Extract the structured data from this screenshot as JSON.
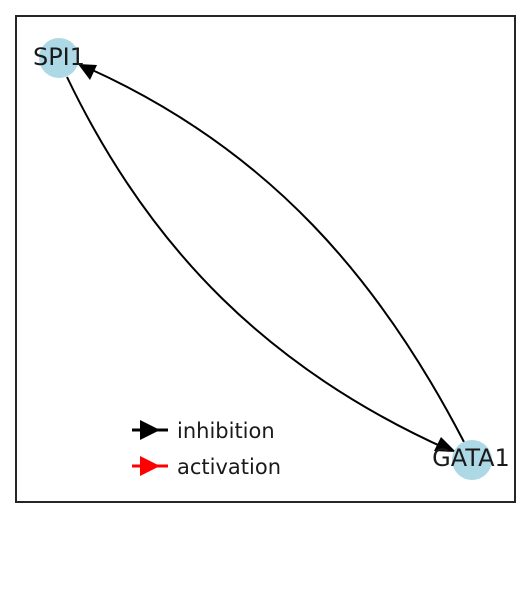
{
  "diagram": {
    "node_color": "#add8e6",
    "frame_color": "#262626",
    "nodes": [
      {
        "id": "spi1",
        "label": "SPI1"
      },
      {
        "id": "gata1",
        "label": "GATA1"
      }
    ],
    "edges": [
      {
        "from": "SPI1",
        "to": "GATA1",
        "type": "inhibition",
        "color": "#000000"
      },
      {
        "from": "GATA1",
        "to": "SPI1",
        "type": "inhibition",
        "color": "#000000"
      }
    ],
    "legend": {
      "items": [
        {
          "label": "inhibition",
          "color": "#000000"
        },
        {
          "label": "activation",
          "color": "#ff0000"
        }
      ]
    }
  }
}
